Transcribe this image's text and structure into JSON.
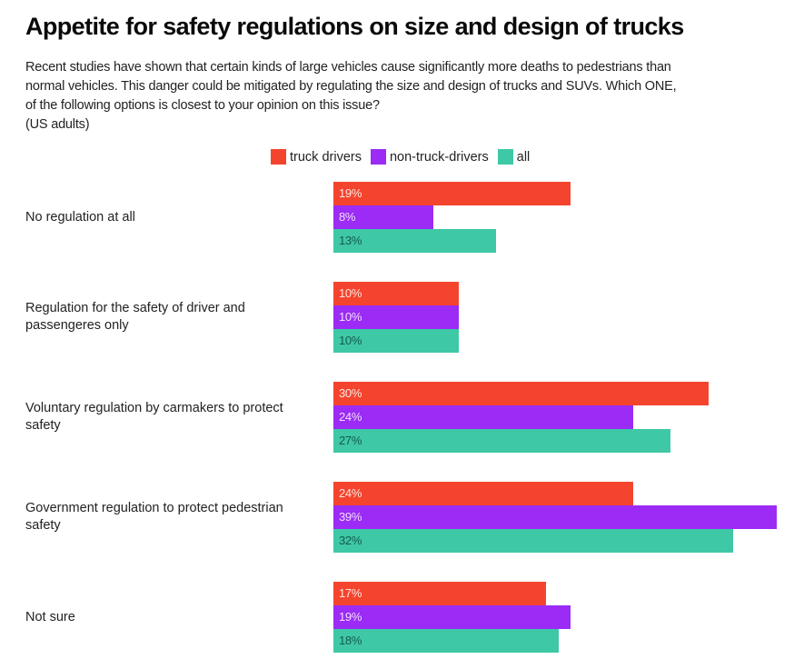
{
  "header": {
    "title": "Appetite for safety regulations on size and design of trucks",
    "subtitle_lines": [
      "Recent studies have shown that certain kinds of large vehicles cause significantly more deaths to pedestrians than",
      "normal vehicles. This danger could be mitigated by regulating the size and design of trucks and SUVs. Which ONE,",
      "of the following options is closest to your opinion on this issue?",
      "(US adults)"
    ]
  },
  "chart_data": {
    "type": "bar",
    "orientation": "horizontal",
    "title": "Appetite for safety regulations on size and design of trucks",
    "subtitle": "Recent studies have shown that certain kinds of large vehicles cause significantly more deaths to pedestrians than normal vehicles. This danger could be mitigated by regulating the size and design of trucks and SUVs. Which ONE, of the following options is closest to your opinion on this issue? (US adults)",
    "xlabel": "",
    "ylabel": "",
    "unit": "%",
    "legend_position": "top",
    "grid": false,
    "categories": [
      "No regulation at all",
      "Regulation for the safety of driver and passengeres only",
      "Voluntary regulation by carmakers to protect safety",
      "Government regulation to protect pedestrian safety",
      "Not sure"
    ],
    "category_lines": [
      [
        "No regulation at all"
      ],
      [
        "Regulation for the safety of driver and",
        "passengeres only"
      ],
      [
        "Voluntary regulation by carmakers to protect",
        "safety"
      ],
      [
        "Government regulation to protect pedestrian",
        "safety"
      ],
      [
        "Not sure"
      ]
    ],
    "series": [
      {
        "name": "truck drivers",
        "color": "#F5442E",
        "label_color": "#FFE6E0",
        "values": [
          19,
          10,
          30,
          24,
          17
        ]
      },
      {
        "name": "non-truck-drivers",
        "color": "#9B2BF5",
        "label_color": "#F3DDFF",
        "values": [
          8,
          10,
          24,
          39,
          19
        ]
      },
      {
        "name": "all",
        "color": "#3EC8A6",
        "label_color": "#145C4A",
        "values": [
          13,
          10,
          27,
          32,
          18
        ]
      }
    ]
  }
}
